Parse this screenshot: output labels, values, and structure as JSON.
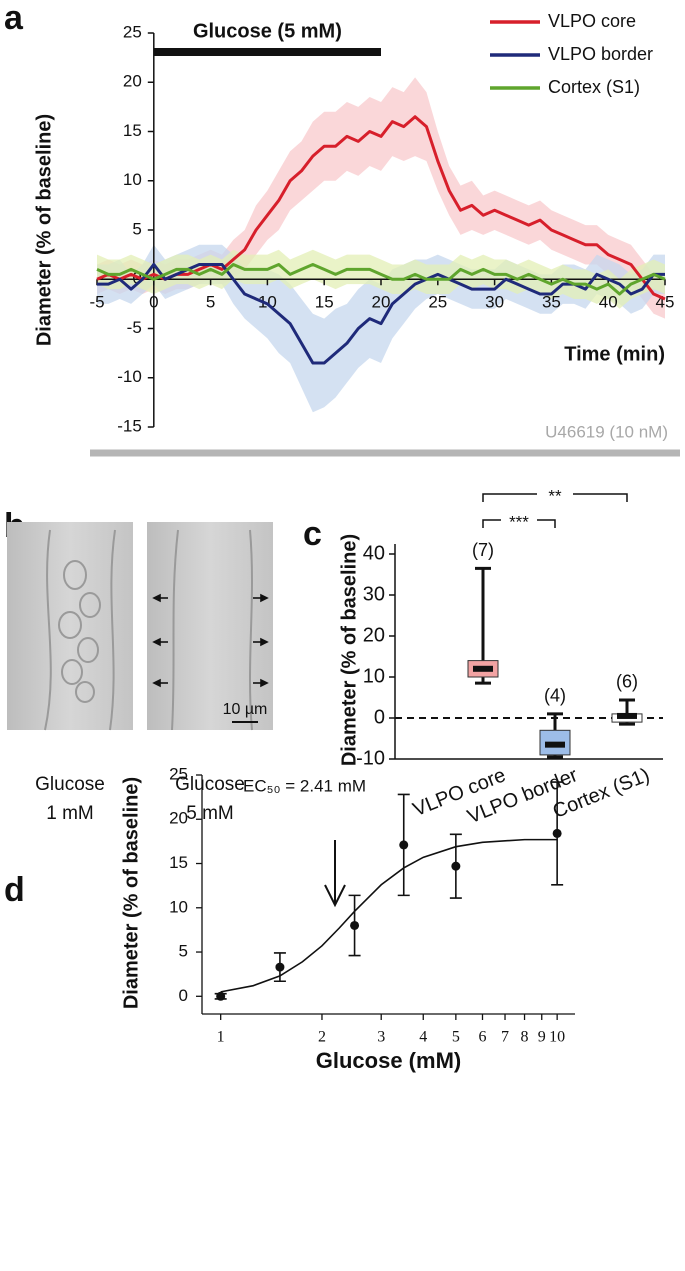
{
  "chart_data": [
    {
      "type": "line",
      "panel": "a",
      "xlabel": "Time (min)",
      "ylabel": "Diameter (% of baseline)",
      "xlim": [
        -5,
        45
      ],
      "ylim": [
        -15,
        25
      ],
      "xticks": [
        -5,
        0,
        5,
        10,
        15,
        20,
        25,
        30,
        35,
        40,
        45
      ],
      "yticks": [
        -15,
        -10,
        -5,
        0,
        5,
        10,
        15,
        20,
        25
      ],
      "legend": "top-right",
      "stimulus": {
        "label": "Glucose (5 mM)",
        "start": 0,
        "end": 20
      },
      "treatment": "U46619 (10 nM)",
      "x": [
        -5,
        -4,
        -3,
        -2,
        -1,
        0,
        1,
        2,
        3,
        4,
        5,
        6,
        7,
        8,
        9,
        10,
        11,
        12,
        13,
        14,
        15,
        16,
        17,
        18,
        19,
        20,
        21,
        22,
        23,
        24,
        25,
        26,
        27,
        28,
        29,
        30,
        31,
        32,
        33,
        34,
        35,
        36,
        37,
        38,
        39,
        40,
        41,
        42,
        43,
        44,
        45
      ],
      "series": [
        {
          "name": "VLPO core",
          "color": "#d71f2b",
          "band_color": "#f8c9cc",
          "values": [
            0,
            0.5,
            0,
            0.5,
            0,
            0.5,
            0,
            0.5,
            0.5,
            1,
            1.5,
            1,
            2,
            3,
            5,
            6.5,
            8,
            10,
            11,
            12.5,
            13.5,
            13.5,
            14.5,
            14,
            15,
            14.5,
            16,
            15.5,
            16.5,
            15.5,
            12,
            9,
            7,
            7.5,
            6.5,
            7,
            6.5,
            6,
            5.5,
            6,
            5,
            4.5,
            4,
            3.5,
            3.5,
            2.5,
            2,
            1.5,
            0,
            -1.5,
            -2
          ],
          "errors": [
            1.5,
            1.5,
            1.5,
            1.5,
            1.5,
            1.5,
            1.5,
            1.5,
            1.5,
            1.5,
            1.5,
            1.5,
            2,
            2,
            2.5,
            2.5,
            3,
            3,
            3,
            3.5,
            3.5,
            3.5,
            3.5,
            3.5,
            3.5,
            3.5,
            3.5,
            3.5,
            4,
            3.5,
            3,
            2.5,
            2.5,
            2.5,
            2,
            2,
            2,
            2,
            2,
            2,
            2,
            2,
            2,
            2,
            2,
            2,
            2,
            2,
            2,
            2,
            2
          ]
        },
        {
          "name": "VLPO border",
          "color": "#1f2a7a",
          "band_color": "#c6d7ee",
          "values": [
            -0.5,
            -0.5,
            0,
            -1,
            0,
            1.5,
            0,
            0.5,
            1,
            1.5,
            1.5,
            1.5,
            0,
            -1.5,
            -2,
            -2.5,
            -3.5,
            -4.5,
            -6.5,
            -8.5,
            -8.5,
            -7.5,
            -6.5,
            -5,
            -4,
            -4.5,
            -2.5,
            -1.5,
            -0.5,
            0,
            0.5,
            0,
            -0.5,
            -1,
            -1,
            -1,
            0,
            -0.5,
            -1,
            -1.5,
            -1.5,
            -0.5,
            -0.5,
            -1,
            0.5,
            0,
            -0.5,
            -1.5,
            -1,
            0.5,
            0.5
          ],
          "errors": [
            2,
            2,
            2,
            1.5,
            1.5,
            2,
            2,
            2,
            2,
            2,
            2,
            2,
            2.5,
            2.5,
            3,
            3.5,
            4,
            4,
            4.5,
            5,
            4.5,
            4.5,
            4,
            4,
            4,
            4,
            3.5,
            3,
            2.5,
            2,
            2,
            2,
            2,
            2,
            2,
            2,
            2,
            2,
            2,
            2,
            2,
            2,
            2,
            2,
            2,
            2,
            2,
            2,
            2,
            2,
            2
          ]
        },
        {
          "name": "Cortex (S1)",
          "color": "#5fa52d",
          "band_color": "#e3efb6",
          "values": [
            1,
            0.5,
            0.5,
            1,
            0.5,
            0,
            0.5,
            1,
            1,
            0.5,
            1,
            0.5,
            1.5,
            1,
            1,
            1,
            1.5,
            0.5,
            1,
            1.5,
            1,
            0.5,
            1,
            1,
            1,
            0.5,
            0,
            0,
            0.5,
            0,
            0,
            0,
            1,
            0.5,
            1,
            0.5,
            0.5,
            0,
            0.5,
            0,
            -0.5,
            0,
            -0.5,
            -0.5,
            -1,
            -0.5,
            -1.5,
            -0.5,
            0,
            0.5,
            0
          ],
          "errors": [
            1.5,
            1.5,
            1.5,
            1.5,
            1.5,
            1.5,
            1.5,
            1.5,
            1.5,
            1.5,
            1.5,
            1.5,
            1.5,
            1.5,
            1.5,
            1.5,
            1.5,
            1.5,
            1.5,
            1.5,
            1.5,
            1.5,
            1.5,
            1.5,
            1.5,
            1.5,
            1.5,
            1.5,
            1.5,
            1.5,
            1.5,
            1.5,
            1.5,
            1.5,
            1.5,
            1.5,
            1.5,
            1.5,
            1.5,
            1.5,
            1.5,
            1.5,
            1.5,
            1.5,
            1.5,
            1.5,
            1.5,
            1.5,
            1.5,
            1.5,
            1.5
          ]
        }
      ]
    },
    {
      "type": "box",
      "panel": "c",
      "ylabel": "Diameter (% of baseline)",
      "ylim": [
        -10,
        40
      ],
      "yticks": [
        -10,
        0,
        10,
        20,
        30,
        40
      ],
      "categories": [
        "VLPO core",
        "VLPO border",
        "Cortex (S1)"
      ],
      "colors": [
        "#f2a3a3",
        "#9dbde8",
        "#ffffff"
      ],
      "boxes": [
        {
          "min": 8.5,
          "q1": 10,
          "median": 12,
          "q3": 14,
          "max": 36.5
        },
        {
          "min": -9.5,
          "q1": -9,
          "median": -6.5,
          "q3": -3,
          "max": 1
        },
        {
          "min": -1.5,
          "q1": -1,
          "median": 0.5,
          "q3": 1,
          "max": 4.4
        }
      ],
      "n_labels": [
        "(7)",
        "(4)",
        "(6)"
      ],
      "reference_line": 0,
      "significance": [
        "***",
        "**"
      ]
    },
    {
      "type": "scatter",
      "panel": "d",
      "xlabel": "Glucose (mM)",
      "ylabel": "Diameter (% of baseline)",
      "xlog": true,
      "xlim": [
        0.88,
        11.3
      ],
      "ylim": [
        -2,
        25
      ],
      "xticks": [
        1,
        2,
        3,
        4,
        5,
        6,
        7,
        8,
        9,
        10
      ],
      "yticks": [
        0,
        5,
        10,
        15,
        20,
        25
      ],
      "annotation": "EC₅₀ = 2.41 mM",
      "color": "#111111",
      "x": [
        1,
        1.5,
        2.5,
        3.5,
        5,
        10
      ],
      "values": [
        0,
        3.3,
        8,
        17.1,
        14.7,
        18.4
      ],
      "errors": [
        0.3,
        1.6,
        3.4,
        5.7,
        3.6,
        5.8
      ],
      "fit": {
        "x": [
          1,
          1.25,
          1.5,
          1.75,
          2,
          2.25,
          2.5,
          3,
          3.5,
          4,
          5,
          6,
          8,
          10
        ],
        "values": [
          0.5,
          1.2,
          2.3,
          3.9,
          5.7,
          7.7,
          9.6,
          12.6,
          14.5,
          15.7,
          16.9,
          17.4,
          17.7,
          17.7
        ]
      }
    }
  ],
  "panel_b": {
    "panel": "b",
    "images": [
      {
        "caption": [
          "Glucose",
          "1 mM"
        ]
      },
      {
        "caption": [
          "Glucose",
          "5 mM"
        ],
        "scale_bar": "10 µm"
      }
    ]
  }
}
